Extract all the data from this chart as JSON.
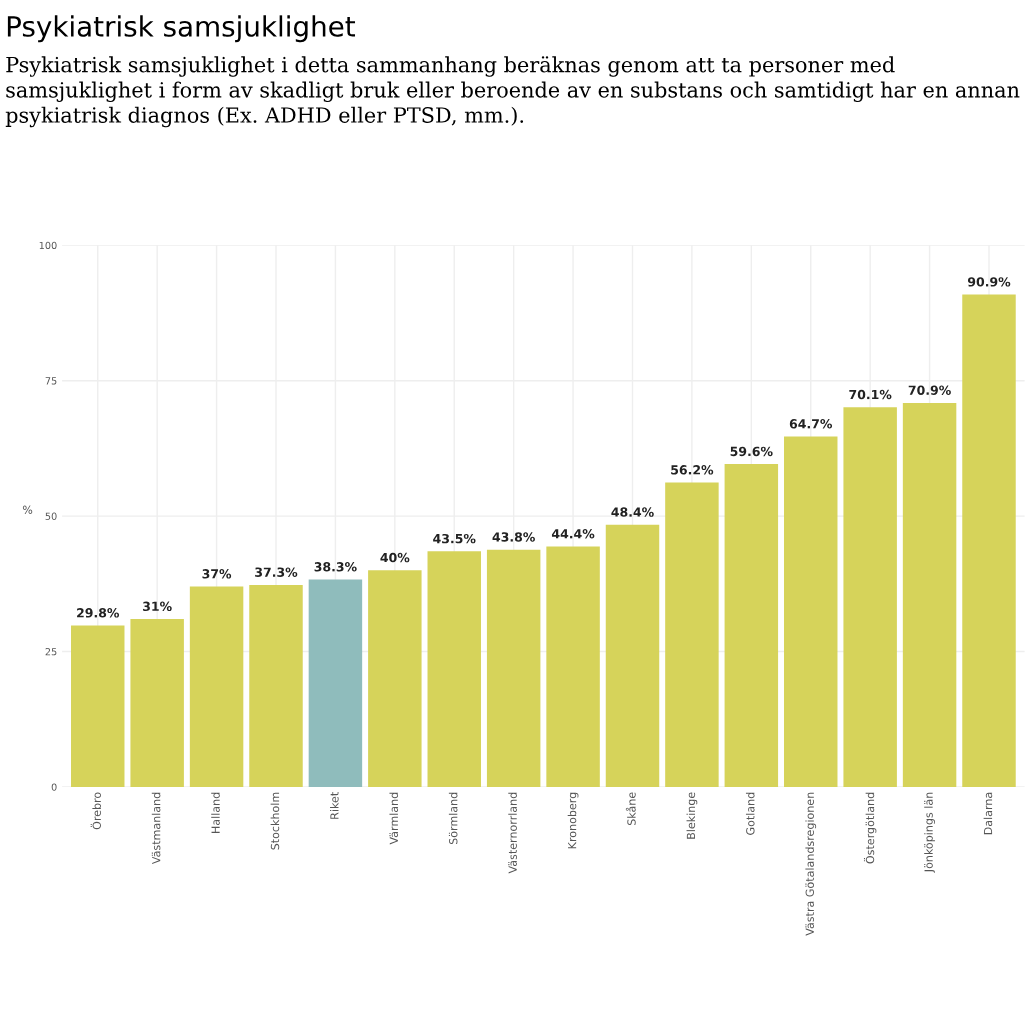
{
  "chart_data": {
    "type": "bar",
    "title": "Psykiatrisk samsjuklighet",
    "subtitle": "Psykiatrisk samsjuklighet i detta sammanhang beräknas genom att ta personer med samsjuklighet i form av skadligt bruk eller beroende av en substans och samtidigt har en annan psykiatrisk diagnos (Ex. ADHD eller PTSD, mm.).",
    "ylabel": "%",
    "categories": [
      "Örebro",
      "Västmanland",
      "Halland",
      "Stockholm",
      "Riket",
      "Värmland",
      "Sörmland",
      "Västernorrland",
      "Kronoberg",
      "Skåne",
      "Blekinge",
      "Gotland",
      "Västra Götalandsregionen",
      "Östergötland",
      "Jönköpings län",
      "Dalarna"
    ],
    "values": [
      29.8,
      31,
      37,
      37.3,
      38.3,
      40,
      43.5,
      43.8,
      44.4,
      48.4,
      56.2,
      59.6,
      64.7,
      70.1,
      70.9,
      90.9
    ],
    "value_labels": [
      "29.8%",
      "31%",
      "37%",
      "37.3%",
      "38.3%",
      "40%",
      "43.5%",
      "43.8%",
      "44.4%",
      "48.4%",
      "56.2%",
      "59.6%",
      "64.7%",
      "70.1%",
      "70.9%",
      "90.9%"
    ],
    "colors": [
      "#d6d35a",
      "#d6d35a",
      "#d6d35a",
      "#d6d35a",
      "#8fbcbc",
      "#d6d35a",
      "#d6d35a",
      "#d6d35a",
      "#d6d35a",
      "#d6d35a",
      "#d6d35a",
      "#d6d35a",
      "#d6d35a",
      "#d6d35a",
      "#d6d35a",
      "#d6d35a"
    ],
    "ylim": [
      0,
      100
    ],
    "yticks": [
      0,
      25,
      50,
      75,
      100
    ],
    "grid": true
  }
}
